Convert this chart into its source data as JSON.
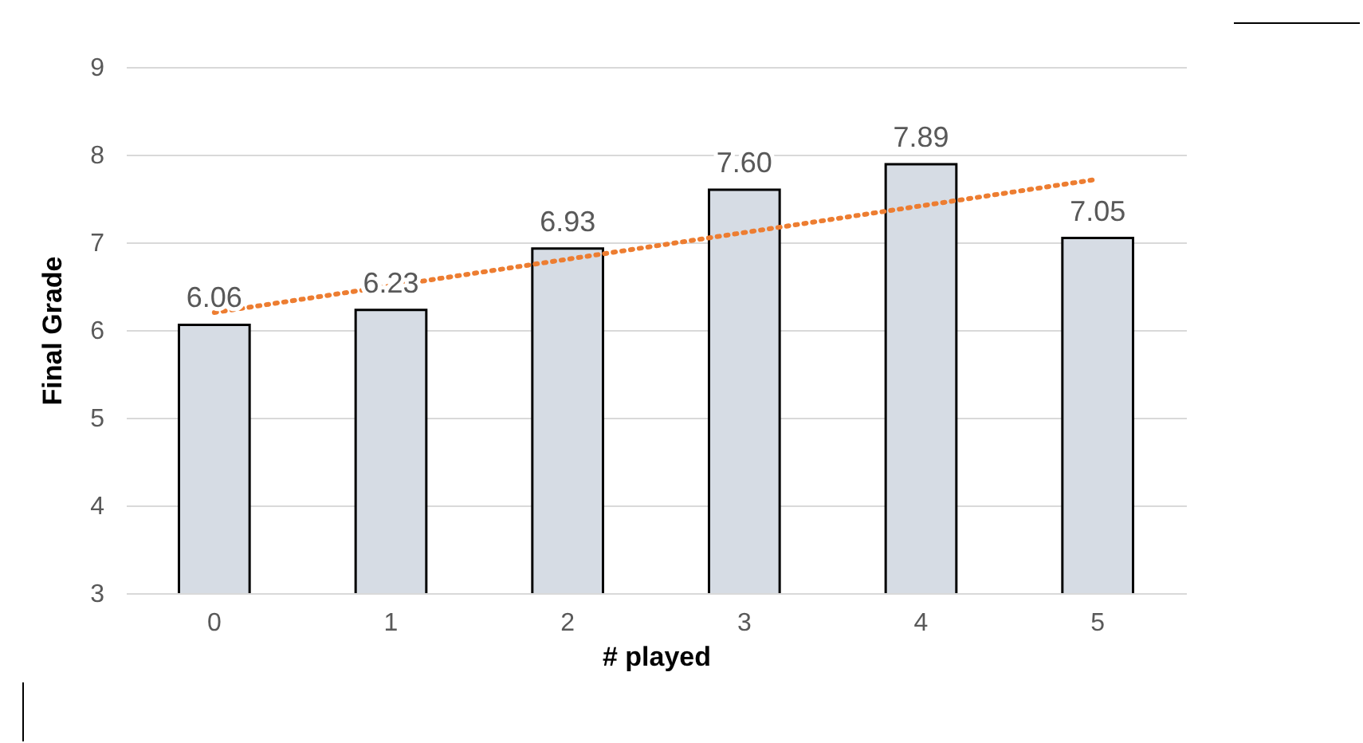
{
  "chart_data": {
    "type": "bar",
    "xlabel": "# played",
    "ylabel": "Final Grade",
    "categories": [
      "0",
      "1",
      "2",
      "3",
      "4",
      "5"
    ],
    "series": [
      {
        "color": "#d6dce4",
        "values": [
          6.06,
          6.23,
          6.93,
          7.6,
          7.89,
          7.05
        ],
        "value_labels": [
          "6.06",
          "6.23",
          "6.93",
          "7.60",
          "7.89",
          "7.05"
        ]
      },
      {
        "type": "line",
        "color": "#ed7d31",
        "x": [
          "0",
          "5"
        ],
        "values": [
          6.2,
          7.72
        ],
        "line_style": "dotted",
        "marker": "none"
      }
    ],
    "ylim": [
      3,
      9
    ],
    "yticks": [
      3,
      4,
      5,
      6,
      7,
      8,
      9
    ],
    "grid": "y"
  }
}
